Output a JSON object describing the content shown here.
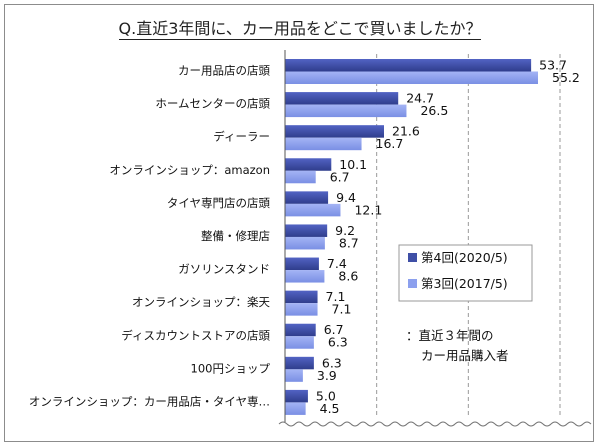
{
  "title": "Q.直近3年間に、カー用品をどこで買いましたか？",
  "chart_data": {
    "type": "bar",
    "orientation": "horizontal",
    "categories": [
      "カー用品店の店頭",
      "ホームセンターの店頭",
      "ディーラー",
      "オンラインショップ：amazon",
      "タイヤ専門店の店頭",
      "整備・修理店",
      "ガソリンスタンド",
      "オンラインショップ：楽天",
      "ディスカウントストアの店頭",
      "100円ショップ",
      "オンラインショップ：カー用品店・タイヤ専…"
    ],
    "series": [
      {
        "name": "第4回(2020/5)",
        "color": "#3f4fa6",
        "values": [
          53.7,
          24.7,
          21.6,
          10.1,
          9.4,
          9.2,
          7.4,
          7.1,
          6.7,
          6.3,
          5.0
        ]
      },
      {
        "name": "第3回(2017/5)",
        "color": "#8ca0ee",
        "values": [
          55.2,
          26.5,
          16.7,
          6.7,
          12.1,
          8.7,
          8.6,
          7.1,
          6.3,
          3.9,
          4.5
        ]
      }
    ],
    "xlim": [
      0,
      60
    ],
    "grid": "vertical dashed",
    "legend": "right",
    "note": "：直近３年間の\nカー用品購入者"
  }
}
